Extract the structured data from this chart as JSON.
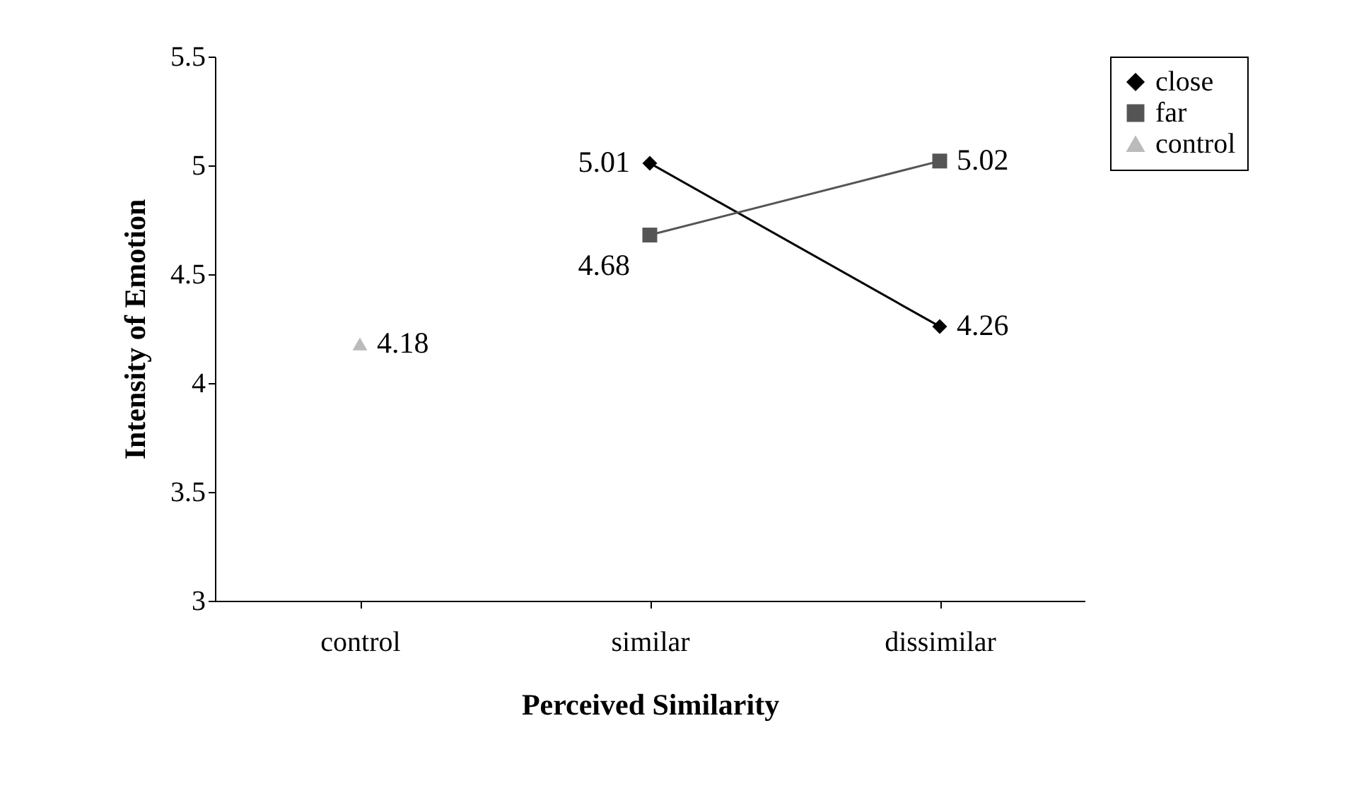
{
  "chart_data": {
    "type": "line",
    "xlabel": "Perceived Similarity",
    "ylabel": "Intensity of Emotion",
    "categories": [
      "control",
      "similar",
      "dissimilar"
    ],
    "series": [
      {
        "name": "close",
        "color": "#000000",
        "marker": "diamond",
        "values": [
          null,
          5.01,
          4.26
        ]
      },
      {
        "name": "far",
        "color": "#555555",
        "marker": "square",
        "values": [
          null,
          4.68,
          5.02
        ]
      },
      {
        "name": "control",
        "color": "#bbbbbb",
        "marker": "triangle",
        "values": [
          4.18,
          null,
          null
        ]
      }
    ],
    "ylim": [
      3,
      5.5
    ],
    "yticks": [
      3,
      3.5,
      4,
      4.5,
      5,
      5.5
    ],
    "data_labels": true,
    "legend": "right",
    "grid": false
  }
}
